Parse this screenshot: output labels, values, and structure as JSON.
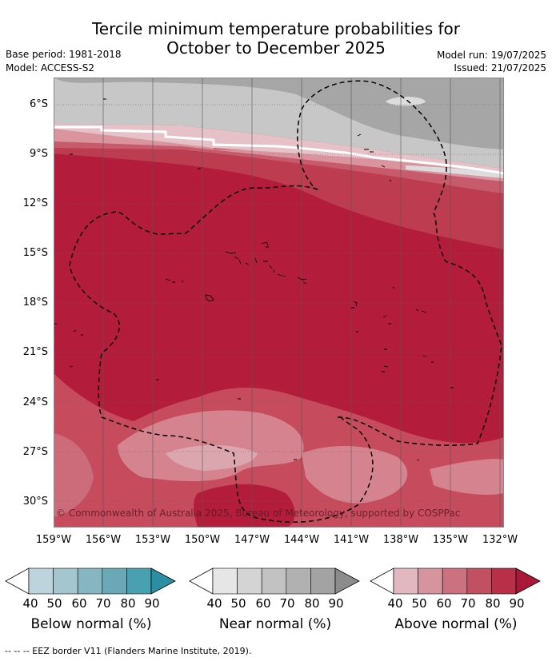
{
  "title_line1": "Tercile minimum temperature probabilities for",
  "title_line2": "October to December 2025",
  "base_period": "Base period: 1981-2018",
  "model": "Model: ACCESS-S2",
  "model_run": "Model run: 19/07/2025",
  "issued": "Issued: 21/07/2025",
  "map": {
    "lat_labels": [
      "6°S",
      "9°S",
      "12°S",
      "15°S",
      "18°S",
      "21°S",
      "24°S",
      "27°S",
      "30°S"
    ],
    "lon_labels": [
      "159°W",
      "156°W",
      "153°W",
      "150°W",
      "147°W",
      "144°W",
      "141°W",
      "138°W",
      "135°W",
      "132°W"
    ],
    "copyright": "© Commonwealth of Australia 2025, Bureau of Meteorology, supported by COSPPac"
  },
  "colorbars": [
    {
      "label": "Below normal (%)",
      "ticks": [
        "40",
        "50",
        "60",
        "70",
        "80",
        "90"
      ],
      "colors": [
        "#ffffff",
        "#bdd4dc",
        "#a4c6cf",
        "#87b6c3",
        "#6aa7b7",
        "#49a0b1",
        "#2c8ea2"
      ]
    },
    {
      "label": "Near normal (%)",
      "ticks": [
        "40",
        "50",
        "60",
        "70",
        "80",
        "90"
      ],
      "colors": [
        "#ffffff",
        "#e6e6e6",
        "#d4d4d4",
        "#c2c2c2",
        "#b1b1b1",
        "#a3a3a3",
        "#8c8c8c"
      ]
    },
    {
      "label": "Above normal (%)",
      "ticks": [
        "40",
        "50",
        "60",
        "70",
        "80",
        "90"
      ],
      "colors": [
        "#ffffff",
        "#e2b8c0",
        "#d6949f",
        "#cb717f",
        "#c05062",
        "#b82f47",
        "#a91838"
      ]
    }
  ],
  "footer": "--  --  -- EEZ border V11 (Flanders Marine Institute, 2019)."
}
